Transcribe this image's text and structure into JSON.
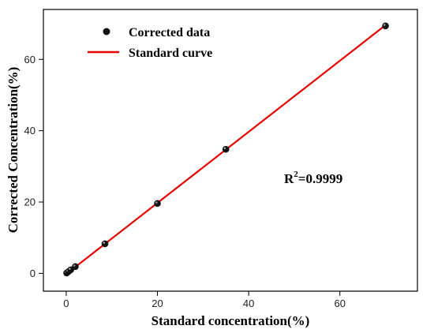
{
  "chart_data": {
    "type": "scatter",
    "xlabel": "Standard concentration(%)",
    "ylabel": "Corrected Concentration(%)",
    "xlim": [
      -5,
      77
    ],
    "ylim": [
      -5,
      74
    ],
    "xticks": [
      0,
      20,
      40,
      60
    ],
    "yticks": [
      0,
      20,
      40,
      60
    ],
    "grid": false,
    "legend_position": "top-left",
    "series": [
      {
        "name": "Corrected data",
        "kind": "scatter",
        "color": "#111111",
        "x": [
          0.1,
          0.5,
          1.0,
          2.0,
          8.5,
          20.0,
          35.0,
          70.0
        ],
        "y": [
          0.1,
          0.5,
          1.0,
          1.9,
          8.3,
          19.6,
          34.8,
          69.4
        ]
      },
      {
        "name": "Standard curve",
        "kind": "line",
        "color": "#e60000",
        "x": [
          0,
          70
        ],
        "y": [
          -0.2,
          69.6
        ]
      }
    ],
    "annotation": {
      "base": "R",
      "sup": "2",
      "rest": "=0.9999"
    }
  }
}
